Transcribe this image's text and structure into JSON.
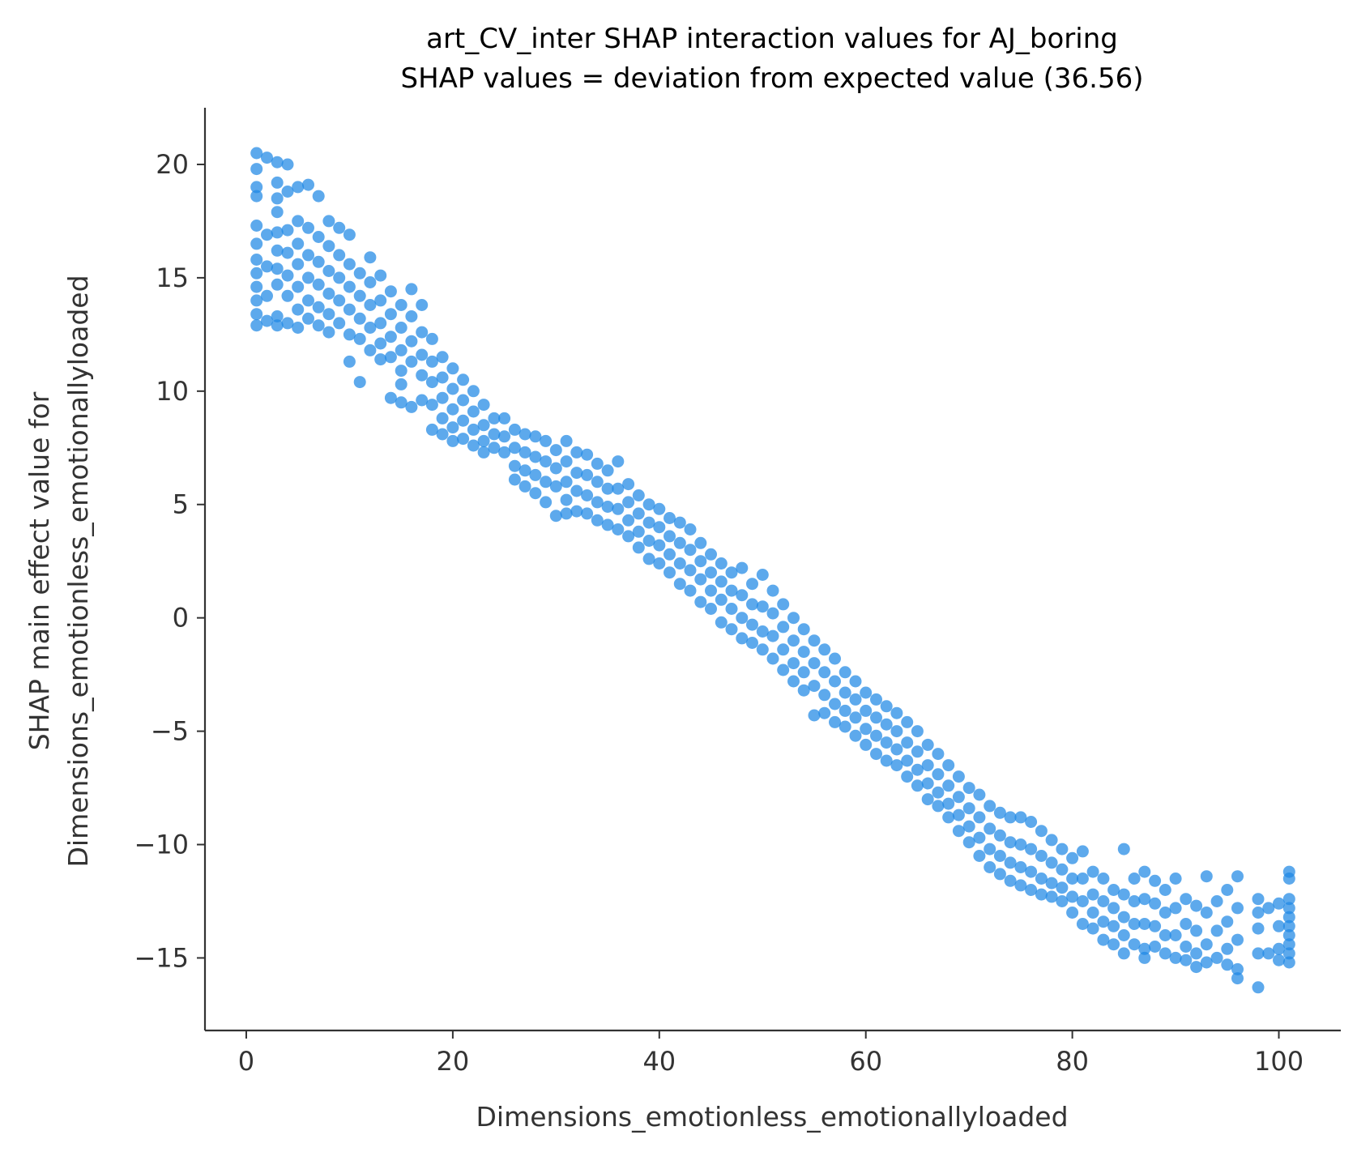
{
  "chart_data": {
    "type": "scatter",
    "title": "art_CV_inter SHAP interaction values for AJ_boring",
    "subtitle": "SHAP values = deviation from expected value (36.56)",
    "xlabel": "Dimensions_emotionless_emotionallyloaded",
    "ylabel_line1": "SHAP main effect value for",
    "ylabel_line2": "Dimensions_emotionless_emotionallyloaded",
    "xlim": [
      -4,
      106
    ],
    "ylim": [
      -18.2,
      22.5
    ],
    "x_ticks": [
      0,
      20,
      40,
      60,
      80,
      100
    ],
    "x_tick_labels": [
      "0",
      "20",
      "40",
      "60",
      "80",
      "100"
    ],
    "y_ticks": [
      20,
      15,
      10,
      5,
      0,
      -5,
      -10,
      -15
    ],
    "y_tick_labels": [
      "20",
      "15",
      "10",
      "5",
      "0",
      "−5",
      "−10",
      "−15"
    ],
    "point_color": "#1E88E5",
    "grid": false,
    "legend": "none",
    "points": [
      [
        1,
        20.5
      ],
      [
        1,
        19.8
      ],
      [
        1,
        19.0
      ],
      [
        1,
        18.6
      ],
      [
        1,
        17.3
      ],
      [
        1,
        16.5
      ],
      [
        1,
        15.8
      ],
      [
        1,
        15.2
      ],
      [
        1,
        14.6
      ],
      [
        1,
        14.0
      ],
      [
        1,
        13.4
      ],
      [
        1,
        12.9
      ],
      [
        2,
        20.3
      ],
      [
        2,
        16.9
      ],
      [
        2,
        15.5
      ],
      [
        2,
        14.2
      ],
      [
        2,
        13.1
      ],
      [
        3,
        20.1
      ],
      [
        3,
        19.2
      ],
      [
        3,
        18.5
      ],
      [
        3,
        17.9
      ],
      [
        3,
        17.0
      ],
      [
        3,
        16.2
      ],
      [
        3,
        15.4
      ],
      [
        3,
        14.7
      ],
      [
        3,
        13.3
      ],
      [
        3,
        12.9
      ],
      [
        4,
        20.0
      ],
      [
        4,
        18.8
      ],
      [
        4,
        17.1
      ],
      [
        4,
        16.1
      ],
      [
        4,
        15.1
      ],
      [
        4,
        14.2
      ],
      [
        4,
        13.0
      ],
      [
        5,
        19.0
      ],
      [
        5,
        17.5
      ],
      [
        5,
        16.5
      ],
      [
        5,
        15.6
      ],
      [
        5,
        14.6
      ],
      [
        5,
        13.6
      ],
      [
        5,
        12.8
      ],
      [
        6,
        19.1
      ],
      [
        6,
        17.2
      ],
      [
        6,
        16.0
      ],
      [
        6,
        15.0
      ],
      [
        6,
        14.0
      ],
      [
        6,
        13.2
      ],
      [
        7,
        18.6
      ],
      [
        7,
        16.8
      ],
      [
        7,
        15.7
      ],
      [
        7,
        14.7
      ],
      [
        7,
        13.7
      ],
      [
        7,
        12.9
      ],
      [
        8,
        17.5
      ],
      [
        8,
        16.4
      ],
      [
        8,
        15.3
      ],
      [
        8,
        14.3
      ],
      [
        8,
        13.4
      ],
      [
        8,
        12.6
      ],
      [
        9,
        17.2
      ],
      [
        9,
        16.0
      ],
      [
        9,
        15.0
      ],
      [
        9,
        14.0
      ],
      [
        9,
        13.0
      ],
      [
        10,
        16.9
      ],
      [
        10,
        15.6
      ],
      [
        10,
        14.6
      ],
      [
        10,
        13.6
      ],
      [
        10,
        12.5
      ],
      [
        10,
        11.3
      ],
      [
        11,
        15.2
      ],
      [
        11,
        14.2
      ],
      [
        11,
        13.2
      ],
      [
        11,
        12.3
      ],
      [
        11,
        10.4
      ],
      [
        12,
        15.9
      ],
      [
        12,
        14.8
      ],
      [
        12,
        13.8
      ],
      [
        12,
        12.8
      ],
      [
        12,
        11.8
      ],
      [
        13,
        15.1
      ],
      [
        13,
        14.0
      ],
      [
        13,
        13.0
      ],
      [
        13,
        12.1
      ],
      [
        13,
        11.4
      ],
      [
        14,
        14.4
      ],
      [
        14,
        13.4
      ],
      [
        14,
        12.4
      ],
      [
        14,
        11.5
      ],
      [
        14,
        9.7
      ],
      [
        15,
        13.8
      ],
      [
        15,
        12.8
      ],
      [
        15,
        11.8
      ],
      [
        15,
        10.9
      ],
      [
        15,
        10.3
      ],
      [
        15,
        9.5
      ],
      [
        16,
        14.5
      ],
      [
        16,
        13.3
      ],
      [
        16,
        12.2
      ],
      [
        16,
        11.3
      ],
      [
        16,
        9.3
      ],
      [
        17,
        13.8
      ],
      [
        17,
        12.6
      ],
      [
        17,
        11.6
      ],
      [
        17,
        10.7
      ],
      [
        17,
        9.6
      ],
      [
        18,
        12.3
      ],
      [
        18,
        11.3
      ],
      [
        18,
        10.4
      ],
      [
        18,
        9.4
      ],
      [
        18,
        8.3
      ],
      [
        19,
        11.5
      ],
      [
        19,
        10.6
      ],
      [
        19,
        9.7
      ],
      [
        19,
        8.8
      ],
      [
        19,
        8.1
      ],
      [
        20,
        11.0
      ],
      [
        20,
        10.1
      ],
      [
        20,
        9.2
      ],
      [
        20,
        8.4
      ],
      [
        20,
        7.8
      ],
      [
        21,
        10.5
      ],
      [
        21,
        9.6
      ],
      [
        21,
        8.7
      ],
      [
        21,
        7.9
      ],
      [
        22,
        10.0
      ],
      [
        22,
        9.1
      ],
      [
        22,
        8.3
      ],
      [
        22,
        7.6
      ],
      [
        23,
        9.4
      ],
      [
        23,
        8.5
      ],
      [
        23,
        7.8
      ],
      [
        23,
        7.3
      ],
      [
        24,
        8.8
      ],
      [
        24,
        8.1
      ],
      [
        24,
        7.5
      ],
      [
        25,
        8.8
      ],
      [
        25,
        8.0
      ],
      [
        25,
        7.3
      ],
      [
        26,
        8.3
      ],
      [
        26,
        7.5
      ],
      [
        26,
        6.7
      ],
      [
        26,
        6.1
      ],
      [
        27,
        8.1
      ],
      [
        27,
        7.3
      ],
      [
        27,
        6.5
      ],
      [
        27,
        5.8
      ],
      [
        28,
        8.0
      ],
      [
        28,
        7.1
      ],
      [
        28,
        6.3
      ],
      [
        28,
        5.5
      ],
      [
        29,
        7.8
      ],
      [
        29,
        6.9
      ],
      [
        29,
        6.0
      ],
      [
        29,
        5.1
      ],
      [
        30,
        7.4
      ],
      [
        30,
        6.6
      ],
      [
        30,
        5.8
      ],
      [
        30,
        4.5
      ],
      [
        31,
        7.8
      ],
      [
        31,
        6.9
      ],
      [
        31,
        6.0
      ],
      [
        31,
        5.2
      ],
      [
        31,
        4.6
      ],
      [
        32,
        7.3
      ],
      [
        32,
        6.4
      ],
      [
        32,
        5.6
      ],
      [
        32,
        4.7
      ],
      [
        33,
        7.2
      ],
      [
        33,
        6.3
      ],
      [
        33,
        5.4
      ],
      [
        33,
        4.6
      ],
      [
        34,
        6.8
      ],
      [
        34,
        6.0
      ],
      [
        34,
        5.1
      ],
      [
        34,
        4.3
      ],
      [
        35,
        6.5
      ],
      [
        35,
        5.7
      ],
      [
        35,
        4.9
      ],
      [
        35,
        4.1
      ],
      [
        36,
        6.9
      ],
      [
        36,
        5.7
      ],
      [
        36,
        4.8
      ],
      [
        36,
        3.9
      ],
      [
        37,
        5.9
      ],
      [
        37,
        5.1
      ],
      [
        37,
        4.3
      ],
      [
        37,
        3.6
      ],
      [
        38,
        5.4
      ],
      [
        38,
        4.6
      ],
      [
        38,
        3.8
      ],
      [
        38,
        3.1
      ],
      [
        39,
        5.0
      ],
      [
        39,
        4.2
      ],
      [
        39,
        3.4
      ],
      [
        39,
        2.6
      ],
      [
        40,
        4.8
      ],
      [
        40,
        4.0
      ],
      [
        40,
        3.2
      ],
      [
        40,
        2.4
      ],
      [
        41,
        4.4
      ],
      [
        41,
        3.6
      ],
      [
        41,
        2.8
      ],
      [
        41,
        2.0
      ],
      [
        42,
        4.2
      ],
      [
        42,
        3.3
      ],
      [
        42,
        2.4
      ],
      [
        42,
        1.5
      ],
      [
        43,
        3.9
      ],
      [
        43,
        3.0
      ],
      [
        43,
        2.1
      ],
      [
        43,
        1.2
      ],
      [
        44,
        3.3
      ],
      [
        44,
        2.5
      ],
      [
        44,
        1.7
      ],
      [
        44,
        0.7
      ],
      [
        45,
        2.8
      ],
      [
        45,
        2.0
      ],
      [
        45,
        1.2
      ],
      [
        45,
        0.4
      ],
      [
        46,
        2.4
      ],
      [
        46,
        1.6
      ],
      [
        46,
        0.8
      ],
      [
        46,
        -0.2
      ],
      [
        47,
        2.0
      ],
      [
        47,
        1.2
      ],
      [
        47,
        0.4
      ],
      [
        47,
        -0.5
      ],
      [
        48,
        2.2
      ],
      [
        48,
        1.0
      ],
      [
        48,
        0.0
      ],
      [
        48,
        -0.9
      ],
      [
        49,
        1.5
      ],
      [
        49,
        0.6
      ],
      [
        49,
        -0.3
      ],
      [
        49,
        -1.1
      ],
      [
        50,
        1.9
      ],
      [
        50,
        0.5
      ],
      [
        50,
        -0.6
      ],
      [
        50,
        -1.4
      ],
      [
        51,
        1.2
      ],
      [
        51,
        0.2
      ],
      [
        51,
        -0.8
      ],
      [
        51,
        -1.8
      ],
      [
        52,
        0.6
      ],
      [
        52,
        -0.4
      ],
      [
        52,
        -1.4
      ],
      [
        52,
        -2.3
      ],
      [
        53,
        0.0
      ],
      [
        53,
        -1.0
      ],
      [
        53,
        -2.0
      ],
      [
        53,
        -2.8
      ],
      [
        54,
        -0.5
      ],
      [
        54,
        -1.5
      ],
      [
        54,
        -2.4
      ],
      [
        54,
        -3.2
      ],
      [
        55,
        -1.0
      ],
      [
        55,
        -2.0
      ],
      [
        55,
        -3.0
      ],
      [
        55,
        -4.3
      ],
      [
        56,
        -1.4
      ],
      [
        56,
        -2.4
      ],
      [
        56,
        -3.4
      ],
      [
        56,
        -4.2
      ],
      [
        57,
        -1.8
      ],
      [
        57,
        -2.8
      ],
      [
        57,
        -3.8
      ],
      [
        57,
        -4.6
      ],
      [
        58,
        -2.4
      ],
      [
        58,
        -3.3
      ],
      [
        58,
        -4.1
      ],
      [
        58,
        -4.8
      ],
      [
        59,
        -2.8
      ],
      [
        59,
        -3.6
      ],
      [
        59,
        -4.4
      ],
      [
        59,
        -5.2
      ],
      [
        60,
        -3.3
      ],
      [
        60,
        -4.1
      ],
      [
        60,
        -4.9
      ],
      [
        60,
        -5.6
      ],
      [
        61,
        -3.6
      ],
      [
        61,
        -4.4
      ],
      [
        61,
        -5.2
      ],
      [
        61,
        -6.0
      ],
      [
        62,
        -3.9
      ],
      [
        62,
        -4.7
      ],
      [
        62,
        -5.5
      ],
      [
        62,
        -6.3
      ],
      [
        63,
        -4.2
      ],
      [
        63,
        -5.0
      ],
      [
        63,
        -5.8
      ],
      [
        63,
        -6.5
      ],
      [
        64,
        -4.6
      ],
      [
        64,
        -5.5
      ],
      [
        64,
        -6.3
      ],
      [
        64,
        -7.0
      ],
      [
        65,
        -5.0
      ],
      [
        65,
        -5.9
      ],
      [
        65,
        -6.7
      ],
      [
        65,
        -7.4
      ],
      [
        66,
        -5.6
      ],
      [
        66,
        -6.5
      ],
      [
        66,
        -7.3
      ],
      [
        66,
        -8.0
      ],
      [
        67,
        -6.0
      ],
      [
        67,
        -6.9
      ],
      [
        67,
        -7.7
      ],
      [
        67,
        -8.3
      ],
      [
        68,
        -6.5
      ],
      [
        68,
        -7.4
      ],
      [
        68,
        -8.2
      ],
      [
        68,
        -8.8
      ],
      [
        69,
        -7.0
      ],
      [
        69,
        -7.9
      ],
      [
        69,
        -8.7
      ],
      [
        69,
        -9.4
      ],
      [
        70,
        -7.5
      ],
      [
        70,
        -8.4
      ],
      [
        70,
        -9.2
      ],
      [
        70,
        -9.9
      ],
      [
        71,
        -7.8
      ],
      [
        71,
        -8.8
      ],
      [
        71,
        -9.7
      ],
      [
        71,
        -10.5
      ],
      [
        72,
        -8.3
      ],
      [
        72,
        -9.3
      ],
      [
        72,
        -10.2
      ],
      [
        72,
        -11.0
      ],
      [
        73,
        -8.6
      ],
      [
        73,
        -9.6
      ],
      [
        73,
        -10.5
      ],
      [
        73,
        -11.3
      ],
      [
        74,
        -8.8
      ],
      [
        74,
        -9.9
      ],
      [
        74,
        -10.8
      ],
      [
        74,
        -11.6
      ],
      [
        75,
        -8.8
      ],
      [
        75,
        -10.0
      ],
      [
        75,
        -11.0
      ],
      [
        75,
        -11.8
      ],
      [
        76,
        -9.0
      ],
      [
        76,
        -10.2
      ],
      [
        76,
        -11.2
      ],
      [
        76,
        -12.0
      ],
      [
        77,
        -9.4
      ],
      [
        77,
        -10.5
      ],
      [
        77,
        -11.5
      ],
      [
        77,
        -12.2
      ],
      [
        78,
        -9.8
      ],
      [
        78,
        -10.8
      ],
      [
        78,
        -11.7
      ],
      [
        78,
        -12.3
      ],
      [
        79,
        -10.2
      ],
      [
        79,
        -11.1
      ],
      [
        79,
        -11.9
      ],
      [
        79,
        -12.5
      ],
      [
        80,
        -10.6
      ],
      [
        80,
        -11.5
      ],
      [
        80,
        -12.3
      ],
      [
        80,
        -13.0
      ],
      [
        81,
        -10.3
      ],
      [
        81,
        -11.5
      ],
      [
        81,
        -12.5
      ],
      [
        81,
        -13.5
      ],
      [
        82,
        -11.2
      ],
      [
        82,
        -12.2
      ],
      [
        82,
        -13.0
      ],
      [
        82,
        -13.7
      ],
      [
        83,
        -11.5
      ],
      [
        83,
        -12.5
      ],
      [
        83,
        -13.4
      ],
      [
        83,
        -14.2
      ],
      [
        84,
        -12.0
      ],
      [
        84,
        -12.8
      ],
      [
        84,
        -13.6
      ],
      [
        84,
        -14.4
      ],
      [
        85,
        -10.2
      ],
      [
        85,
        -12.2
      ],
      [
        85,
        -13.2
      ],
      [
        85,
        -14.0
      ],
      [
        85,
        -14.8
      ],
      [
        86,
        -11.5
      ],
      [
        86,
        -12.5
      ],
      [
        86,
        -13.5
      ],
      [
        86,
        -14.4
      ],
      [
        87,
        -11.2
      ],
      [
        87,
        -12.4
      ],
      [
        87,
        -13.5
      ],
      [
        87,
        -14.6
      ],
      [
        87,
        -15.0
      ],
      [
        88,
        -11.6
      ],
      [
        88,
        -12.6
      ],
      [
        88,
        -13.6
      ],
      [
        88,
        -14.5
      ],
      [
        89,
        -12.0
      ],
      [
        89,
        -13.0
      ],
      [
        89,
        -14.0
      ],
      [
        89,
        -14.8
      ],
      [
        90,
        -11.5
      ],
      [
        90,
        -12.8
      ],
      [
        90,
        -14.0
      ],
      [
        90,
        -15.0
      ],
      [
        91,
        -12.4
      ],
      [
        91,
        -13.5
      ],
      [
        91,
        -14.5
      ],
      [
        91,
        -15.1
      ],
      [
        92,
        -12.7
      ],
      [
        92,
        -13.8
      ],
      [
        92,
        -14.8
      ],
      [
        92,
        -15.4
      ],
      [
        93,
        -11.4
      ],
      [
        93,
        -13.0
      ],
      [
        93,
        -14.4
      ],
      [
        93,
        -15.2
      ],
      [
        94,
        -12.5
      ],
      [
        94,
        -13.8
      ],
      [
        94,
        -15.0
      ],
      [
        95,
        -12.0
      ],
      [
        95,
        -13.4
      ],
      [
        95,
        -14.6
      ],
      [
        95,
        -15.3
      ],
      [
        96,
        -11.4
      ],
      [
        96,
        -12.8
      ],
      [
        96,
        -14.2
      ],
      [
        96,
        -15.5
      ],
      [
        96,
        -15.9
      ],
      [
        98,
        -12.4
      ],
      [
        98,
        -13.0
      ],
      [
        98,
        -13.7
      ],
      [
        98,
        -14.8
      ],
      [
        98,
        -16.3
      ],
      [
        99,
        -12.8
      ],
      [
        99,
        -14.8
      ],
      [
        100,
        -12.6
      ],
      [
        100,
        -13.6
      ],
      [
        100,
        -14.6
      ],
      [
        100,
        -15.1
      ],
      [
        101,
        -11.2
      ],
      [
        101,
        -11.5
      ],
      [
        101,
        -12.4
      ],
      [
        101,
        -12.8
      ],
      [
        101,
        -13.2
      ],
      [
        101,
        -13.6
      ],
      [
        101,
        -14.0
      ],
      [
        101,
        -14.4
      ],
      [
        101,
        -14.8
      ],
      [
        101,
        -15.2
      ]
    ]
  }
}
